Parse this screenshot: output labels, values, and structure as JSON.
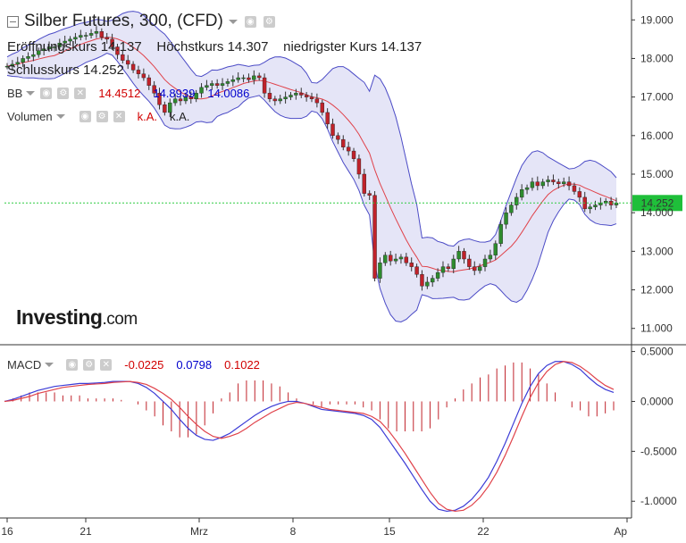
{
  "header": {
    "title": "Silber Futures, 300, (CFD)",
    "open_label": "Eröffnungskurs",
    "open_value": "14.137",
    "high_label": "Höchstkurs",
    "high_value": "14.307",
    "low_label": "niedrigster Kurs",
    "low_value": "14.137",
    "close_label": "Schlusskurs",
    "close_value": "14.252"
  },
  "bb_row": {
    "label": "BB",
    "v1": "14.4512",
    "v2": "14.8939",
    "v3": "14.0086"
  },
  "volume_row": {
    "label": "Volumen",
    "v": "k.A.",
    "v2": "k.A."
  },
  "macd_row": {
    "label": "MACD",
    "v1": "-0.0225",
    "v2": "0.0798",
    "v3": "0.1022"
  },
  "logo": {
    "main": "Investing",
    "suffix": ".com"
  },
  "colors": {
    "up": "#2e8b2e",
    "down": "#c0222a",
    "band": "#dcdcf4",
    "band_edge": "#4b4bc6",
    "ma": "#e0424a",
    "macd": "#3b3bd6",
    "signal": "#e0424a",
    "price_line": "#2ecc40"
  },
  "chart_data": [
    {
      "type": "candlestick",
      "title": "Silber Futures, 300, (CFD)",
      "x_tick_labels": [
        "16",
        "21",
        "Mrz",
        "8",
        "15",
        "22",
        "Ap"
      ],
      "y_tick_labels": [
        "19.000",
        "18.000",
        "17.000",
        "16.000",
        "15.000",
        "14.000",
        "13.000",
        "12.000",
        "11.000"
      ],
      "ylim": [
        10.6,
        19.4
      ],
      "last_price": "14.252",
      "close": [
        17.8,
        17.85,
        17.9,
        18.0,
        18.05,
        18.1,
        18.2,
        18.25,
        18.3,
        18.3,
        18.4,
        18.45,
        18.5,
        18.55,
        18.6,
        18.6,
        18.65,
        18.7,
        18.55,
        18.5,
        18.3,
        18.1,
        17.95,
        17.85,
        17.7,
        17.6,
        17.5,
        17.3,
        17.1,
        16.8,
        16.6,
        16.85,
        16.95,
        16.9,
        17.0,
        16.95,
        17.1,
        17.25,
        17.3,
        17.35,
        17.3,
        17.35,
        17.4,
        17.45,
        17.5,
        17.5,
        17.45,
        17.55,
        17.5,
        17.1,
        16.95,
        16.9,
        16.95,
        17.0,
        17.05,
        17.1,
        17.05,
        17.0,
        16.95,
        16.85,
        16.6,
        16.3,
        16.0,
        15.9,
        15.7,
        15.6,
        15.4,
        15.0,
        14.5,
        14.45,
        12.3,
        12.7,
        12.9,
        12.75,
        12.8,
        12.85,
        12.7,
        12.6,
        12.4,
        12.1,
        12.2,
        12.3,
        12.45,
        12.6,
        12.55,
        12.8,
        13.0,
        12.8,
        12.6,
        12.5,
        12.6,
        12.8,
        12.9,
        13.2,
        13.7,
        14.0,
        14.2,
        14.4,
        14.6,
        14.65,
        14.8,
        14.7,
        14.8,
        14.85,
        14.8,
        14.75,
        14.8,
        14.7,
        14.55,
        14.4,
        14.1,
        14.15,
        14.2,
        14.25,
        14.3,
        14.2,
        14.25
      ],
      "bb_mid_last": 14.4512,
      "bb_upper_last": 14.8939,
      "bb_lower_last": 14.0086
    },
    {
      "type": "line",
      "title": "MACD",
      "y_tick_labels": [
        "0.5000",
        "0.0000",
        "-0.5000",
        "-1.0000"
      ],
      "ylim": [
        -1.15,
        0.55
      ],
      "macd": [
        0.0,
        0.02,
        0.05,
        0.08,
        0.11,
        0.13,
        0.15,
        0.16,
        0.17,
        0.18,
        0.18,
        0.185,
        0.19,
        0.2,
        0.2,
        0.2,
        0.18,
        0.14,
        0.08,
        0.0,
        -0.08,
        -0.18,
        -0.27,
        -0.34,
        -0.38,
        -0.39,
        -0.36,
        -0.32,
        -0.26,
        -0.2,
        -0.14,
        -0.09,
        -0.05,
        -0.02,
        0.0,
        0.0,
        -0.02,
        -0.05,
        -0.08,
        -0.09,
        -0.1,
        -0.11,
        -0.12,
        -0.14,
        -0.18,
        -0.26,
        -0.38,
        -0.5,
        -0.62,
        -0.75,
        -0.88,
        -1.0,
        -1.08,
        -1.1,
        -1.09,
        -1.05,
        -0.98,
        -0.88,
        -0.76,
        -0.6,
        -0.42,
        -0.22,
        -0.02,
        0.15,
        0.28,
        0.36,
        0.4,
        0.4,
        0.37,
        0.32,
        0.24,
        0.17,
        0.12,
        0.09
      ],
      "signal": [
        0.0,
        0.01,
        0.03,
        0.05,
        0.08,
        0.1,
        0.12,
        0.14,
        0.15,
        0.16,
        0.17,
        0.175,
        0.18,
        0.19,
        0.195,
        0.2,
        0.19,
        0.17,
        0.13,
        0.08,
        0.02,
        -0.06,
        -0.15,
        -0.23,
        -0.3,
        -0.35,
        -0.37,
        -0.35,
        -0.32,
        -0.27,
        -0.21,
        -0.16,
        -0.11,
        -0.07,
        -0.03,
        -0.01,
        -0.02,
        -0.04,
        -0.06,
        -0.08,
        -0.09,
        -0.1,
        -0.11,
        -0.12,
        -0.15,
        -0.2,
        -0.29,
        -0.4,
        -0.52,
        -0.65,
        -0.78,
        -0.91,
        -1.02,
        -1.08,
        -1.1,
        -1.09,
        -1.04,
        -0.96,
        -0.85,
        -0.71,
        -0.54,
        -0.35,
        -0.15,
        0.04,
        0.19,
        0.3,
        0.37,
        0.4,
        0.39,
        0.35,
        0.29,
        0.22,
        0.16,
        0.12
      ]
    }
  ]
}
